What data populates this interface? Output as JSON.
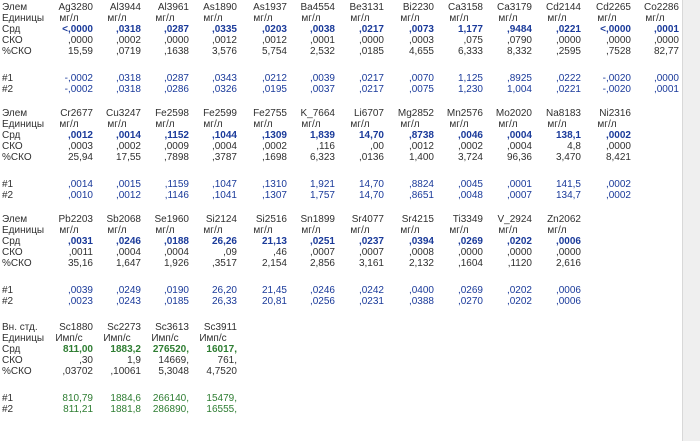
{
  "row_labels": {
    "elem": "Элем",
    "units": "Единицы",
    "avg": "Срд",
    "sd": "СКО",
    "rsd": "%СКО",
    "r1": "#1",
    "r2": "#2",
    "internal_std": "Вн. стд."
  },
  "blocks": [
    {
      "elements": [
        "Ag3280",
        "Al3944",
        "Al3961",
        "As1890",
        "As1937",
        "Ba4554",
        "Be3131",
        "Bi2230",
        "Ca3158",
        "Ca3179",
        "Cd2144",
        "Cd2265",
        "Co2286"
      ],
      "units": [
        "мг/л",
        "мг/л",
        "мг/л",
        "мг/л",
        "мг/л",
        "мг/л",
        "мг/л",
        "мг/л",
        "мг/л",
        "мг/л",
        "мг/л",
        "мг/л",
        "мг/л"
      ],
      "avg": [
        "<,0000",
        ",0318",
        ",0287",
        ",0335",
        ",0203",
        ",0038",
        ",0217",
        ",0073",
        "1,177",
        ",9484",
        ",0221",
        "<,0000",
        ",0001"
      ],
      "sd": [
        ",0000",
        ",0002",
        ",0000",
        ",0012",
        ",0012",
        ",0001",
        ",0000",
        ",0003",
        ",075",
        ",0790",
        ",0000",
        ",0000",
        ",0000"
      ],
      "rsd": [
        "15,59",
        ",0719",
        ",1638",
        "3,576",
        "5,754",
        "2,532",
        ",0185",
        "4,655",
        "6,333",
        "8,332",
        ",2595",
        ",7528",
        "82,77"
      ],
      "r1": [
        "-,0002",
        ",0318",
        ",0287",
        ",0343",
        ",0212",
        ",0039",
        ",0217",
        ",0070",
        "1,125",
        ",8925",
        ",0222",
        "-,0020",
        ",0000"
      ],
      "r2": [
        "-,0002",
        ",0318",
        ",0286",
        ",0326",
        ",0195",
        ",0037",
        ",0217",
        ",0075",
        "1,230",
        "1,004",
        ",0221",
        "-,0020",
        ",0001"
      ]
    },
    {
      "elements": [
        "Cr2677",
        "Cu3247",
        "Fe2598",
        "Fe2599",
        "Fe2755",
        "K_7664",
        "Li6707",
        "Mg2852",
        "Mn2576",
        "Mo2020",
        "Na8183",
        "Ni2316"
      ],
      "units": [
        "мг/л",
        "мг/л",
        "мг/л",
        "мг/л",
        "мг/л",
        "мг/л",
        "мг/л",
        "мг/л",
        "мг/л",
        "мг/л",
        "мг/л",
        "мг/л"
      ],
      "avg": [
        ",0012",
        ",0014",
        ",1152",
        ",1044",
        ",1309",
        "1,839",
        "14,70",
        ",8738",
        ",0046",
        ",0004",
        "138,1",
        ",0002"
      ],
      "sd": [
        ",0003",
        ",0002",
        ",0009",
        ",0004",
        ",0002",
        ",116",
        ",00",
        ",0012",
        ",0002",
        ",0004",
        "4,8",
        ",0000"
      ],
      "rsd": [
        "25,94",
        "17,55",
        ",7898",
        ",3787",
        ",1698",
        "6,323",
        ",0136",
        "1,400",
        "3,724",
        "96,36",
        "3,470",
        "8,421"
      ],
      "r1": [
        ",0014",
        ",0015",
        ",1159",
        ",1047",
        ",1310",
        "1,921",
        "14,70",
        ",8824",
        ",0045",
        ",0001",
        "141,5",
        ",0002"
      ],
      "r2": [
        ",0010",
        ",0012",
        ",1146",
        ",1041",
        ",1307",
        "1,757",
        "14,70",
        ",8651",
        ",0048",
        ",0007",
        "134,7",
        ",0002"
      ]
    },
    {
      "elements": [
        "Pb2203",
        "Sb2068",
        "Se1960",
        "Si2124",
        "Si2516",
        "Sn1899",
        "Sr4077",
        "Sr4215",
        "Ti3349",
        "V_2924",
        "Zn2062"
      ],
      "units": [
        "мг/л",
        "мг/л",
        "мг/л",
        "мг/л",
        "мг/л",
        "мг/л",
        "мг/л",
        "мг/л",
        "мг/л",
        "мг/л",
        "мг/л"
      ],
      "avg": [
        ",0031",
        ",0246",
        ",0188",
        "26,26",
        "21,13",
        ",0251",
        ",0237",
        ",0394",
        ",0269",
        ",0202",
        ",0006"
      ],
      "sd": [
        ",0011",
        ",0004",
        ",0004",
        ",09",
        ",46",
        ",0007",
        ",0007",
        ",0008",
        ",0000",
        ",0000",
        ",0000"
      ],
      "rsd": [
        "35,16",
        "1,647",
        "1,926",
        ",3517",
        "2,154",
        "2,856",
        "3,161",
        "2,132",
        ",1604",
        ",1120",
        "2,616"
      ],
      "r1": [
        ",0039",
        ",0249",
        ",0190",
        "26,20",
        "21,45",
        ",0246",
        ",0242",
        ",0400",
        ",0269",
        ",0202",
        ",0006"
      ],
      "r2": [
        ",0023",
        ",0243",
        ",0185",
        "26,33",
        "20,81",
        ",0256",
        ",0231",
        ",0388",
        ",0270",
        ",0202",
        ",0006"
      ]
    },
    {
      "elements": [
        "Sc1880",
        "Sc2273",
        "Sc3613",
        "Sc3911"
      ],
      "units": [
        "Имп/с",
        "Имп/с",
        "Имп/с",
        "Имп/с"
      ],
      "avg": [
        "811,00",
        "1883,2",
        "276520,",
        "16017,"
      ],
      "sd": [
        ",30",
        "1,9",
        "14669,",
        "761,"
      ],
      "rsd": [
        ",03702",
        ",10061",
        "5,3048",
        "4,7520"
      ],
      "r1": [
        "810,79",
        "1884,6",
        "266140,",
        "15479,"
      ],
      "r2": [
        "811,21",
        "1881,8",
        "286890,",
        "16555,"
      ]
    }
  ]
}
